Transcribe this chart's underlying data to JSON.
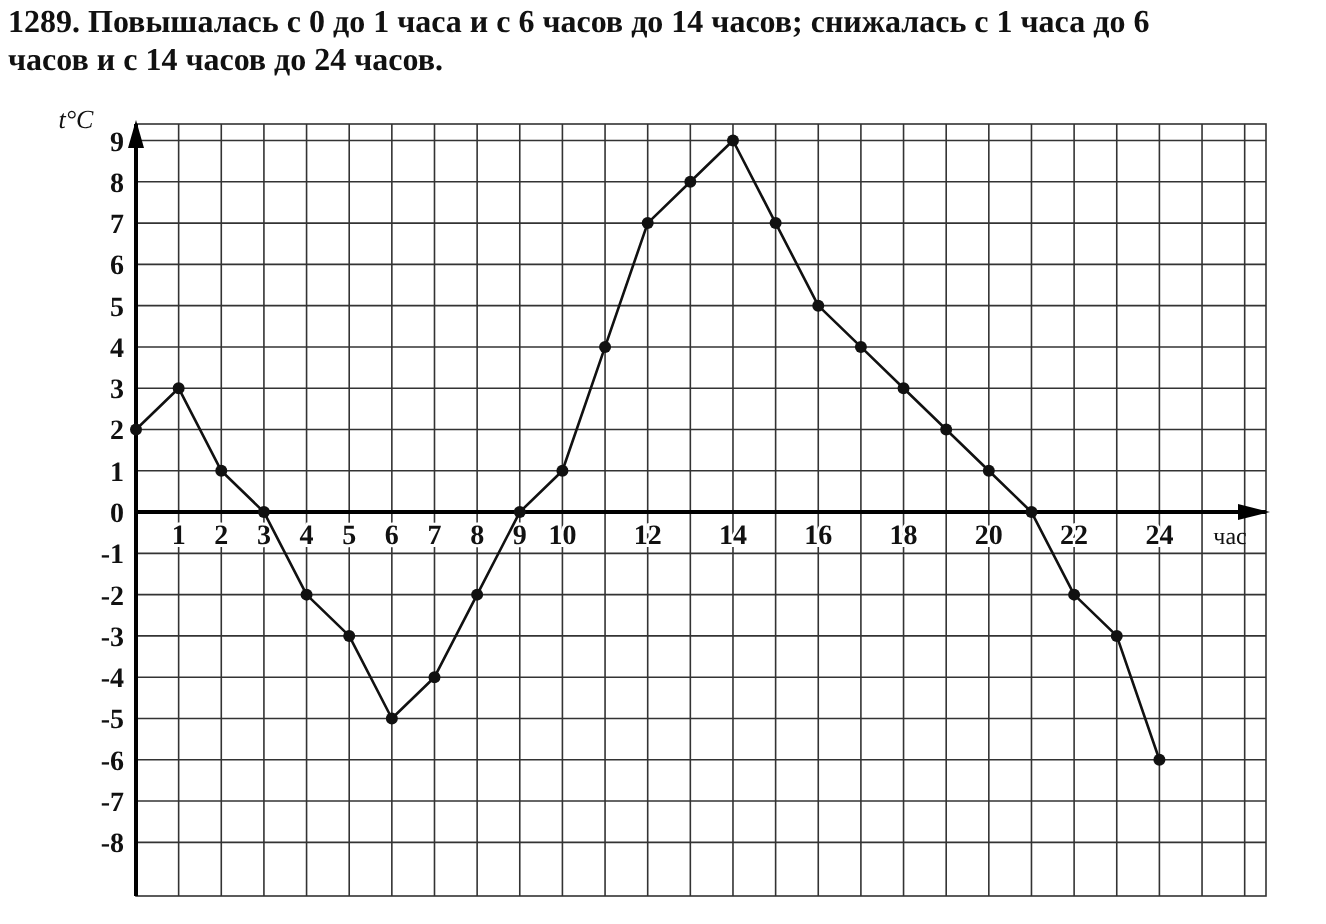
{
  "chart_data": {
    "type": "line",
    "title": "1289. Повышалась с 0 до 1 часа и с 6 часов до 14 часов; снижалась с 1 часа до 6 часов и с 14 часов до 24 часов.",
    "xlabel": "час",
    "ylabel": "t°C",
    "x": [
      0,
      1,
      2,
      3,
      4,
      5,
      6,
      7,
      8,
      9,
      10,
      11,
      12,
      13,
      14,
      15,
      16,
      17,
      18,
      19,
      20,
      21,
      22,
      23,
      24
    ],
    "series": [
      {
        "color": "#111111",
        "values": [
          2,
          3,
          1,
          0,
          -2,
          -3,
          -5,
          -4,
          -2,
          0,
          1,
          4,
          7,
          8,
          9,
          7,
          5,
          4,
          3,
          2,
          1,
          0,
          -2,
          -3,
          -6
        ]
      }
    ],
    "xlim": [
      0,
      26.5
    ],
    "ylim": [
      -9.3,
      9.4
    ],
    "xticks": [
      {
        "value": 0,
        "label": null
      },
      1,
      2,
      3,
      4,
      5,
      6,
      7,
      8,
      9,
      10,
      {
        "value": 11,
        "label": null
      },
      12,
      {
        "value": 13,
        "label": null
      },
      14,
      {
        "value": 15,
        "label": null
      },
      16,
      {
        "value": 17,
        "label": null
      },
      18,
      {
        "value": 19,
        "label": null
      },
      20,
      {
        "value": 21,
        "label": null
      },
      22,
      {
        "value": 23,
        "label": null
      },
      24,
      {
        "value": 25,
        "label": null
      },
      {
        "value": 26,
        "label": null
      }
    ],
    "yticks": [
      -8,
      -7,
      -6,
      -5,
      -4,
      -3,
      -2,
      -1,
      0,
      1,
      2,
      3,
      4,
      5,
      6,
      7,
      8,
      9
    ],
    "grid": true,
    "marker": "circle",
    "line_style": "solid"
  }
}
